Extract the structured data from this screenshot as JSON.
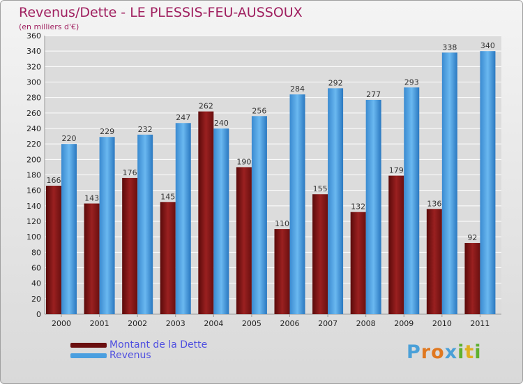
{
  "header": {
    "title": "Revenus/Dette - LE PLESSIS-FEU-AUSSOUX",
    "subtitle": "(en milliers d'€)"
  },
  "chart_data": {
    "type": "bar",
    "categories": [
      "2000",
      "2001",
      "2002",
      "2003",
      "2004",
      "2005",
      "2006",
      "2007",
      "2008",
      "2009",
      "2010",
      "2011"
    ],
    "series": [
      {
        "name": "Montant de la Dette",
        "values": [
          166,
          143,
          176,
          145,
          262,
          190,
          110,
          155,
          132,
          179,
          136,
          92
        ],
        "color": "#8b1a1a"
      },
      {
        "name": "Revenus",
        "values": [
          220,
          229,
          232,
          247,
          240,
          256,
          284,
          292,
          277,
          293,
          338,
          340
        ],
        "color": "#4a9fe0"
      }
    ],
    "ylim": [
      0,
      360
    ],
    "yticks": [
      0,
      20,
      40,
      60,
      80,
      100,
      120,
      140,
      160,
      180,
      200,
      220,
      240,
      260,
      280,
      300,
      320,
      340,
      360
    ],
    "grid": true,
    "legend_position": "bottom-left"
  },
  "logo": {
    "letters": [
      {
        "ch": "P",
        "color": "#4aa0d8"
      },
      {
        "ch": "r",
        "color": "#e07820"
      },
      {
        "ch": "o",
        "color": "#e07820"
      },
      {
        "ch": "x",
        "color": "#4aa0d8"
      },
      {
        "ch": "i",
        "color": "#60b030"
      },
      {
        "ch": "t",
        "color": "#e0b020"
      },
      {
        "ch": "i",
        "color": "#60b030"
      }
    ]
  }
}
